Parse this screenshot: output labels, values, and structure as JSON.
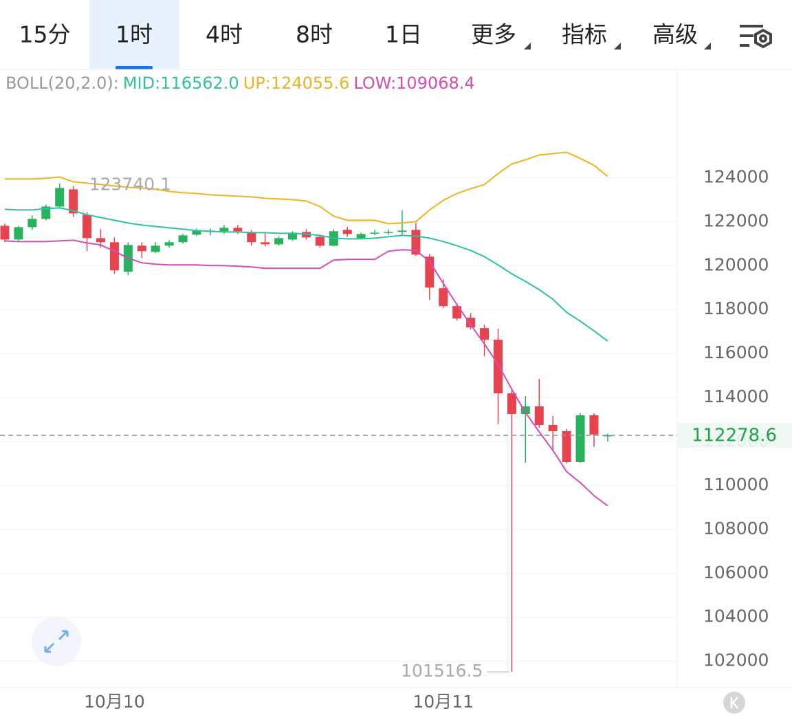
{
  "tabs": [
    "15分",
    "1时",
    "4时",
    "8时",
    "1日",
    "更多",
    "指标",
    "高级"
  ],
  "chart_data": {
    "type": "candlestick",
    "indicator": "BOLL(20,2.0):",
    "categories": [
      null,
      null,
      null,
      null,
      null,
      null,
      null,
      null,
      "10月10",
      null,
      null,
      null,
      null,
      null,
      null,
      null,
      null,
      null,
      null,
      null,
      null,
      null,
      null,
      null,
      null,
      null,
      null,
      null,
      null,
      null,
      null,
      null,
      "10月11",
      null,
      null,
      null,
      null,
      null,
      null,
      null,
      null,
      null,
      null,
      null,
      null
    ],
    "open": [
      121812,
      121187,
      121750,
      122125,
      122687,
      123469,
      122312,
      121250,
      121062,
      119719,
      120906,
      120625,
      120906,
      121062,
      121406,
      121531,
      121562,
      121719,
      121531,
      121062,
      120969,
      121187,
      121531,
      121312,
      120906,
      121625,
      121250,
      121469,
      121500,
      121531,
      121625,
      120406,
      118969,
      118156,
      117625,
      117156,
      116625,
      114187,
      113250,
      113594,
      112750,
      112469,
      111062,
      113187,
      112250
    ],
    "high": [
      121906,
      121812,
      122281,
      122781,
      123740.1,
      123625,
      122437,
      121656,
      121281,
      121062,
      121062,
      121062,
      121156,
      121437,
      121687,
      121687,
      121844,
      121844,
      121625,
      121469,
      121344,
      121562,
      121656,
      121406,
      121656,
      121750,
      121500,
      121625,
      121656,
      122500,
      121937,
      120531,
      119375,
      118281,
      117844,
      117312,
      117125,
      114375,
      114062,
      114844,
      113156,
      112562,
      113281,
      113281,
      112350
    ],
    "low": [
      121062,
      121125,
      121625,
      122062,
      122625,
      122219,
      120656,
      120812,
      119625,
      119562,
      120344,
      120562,
      120812,
      121000,
      121344,
      121375,
      121437,
      121437,
      120906,
      120875,
      120906,
      121125,
      121187,
      120812,
      120875,
      121312,
      121187,
      121375,
      121406,
      121344,
      120437,
      118437,
      118062,
      117500,
      117094,
      115875,
      112781,
      101516.5,
      111031,
      112625,
      111594,
      111000,
      111031,
      111750,
      112000
    ],
    "close": [
      121187,
      121750,
      122125,
      122687,
      123531,
      122375,
      121250,
      121062,
      119781,
      120937,
      120656,
      120906,
      121062,
      121375,
      121594,
      121594,
      121719,
      121562,
      121062,
      120969,
      121250,
      121500,
      121281,
      120906,
      121562,
      121437,
      121437,
      121500,
      121531,
      121594,
      120500,
      119000,
      118156,
      117594,
      117187,
      116625,
      114187,
      113250,
      113594,
      112750,
      112469,
      111062,
      113187,
      112312,
      112278.6
    ],
    "up_color": "#27b35d",
    "down_color": "#e5444f",
    "series": [
      {
        "name": "MID",
        "legend_label": "MID:116562.0",
        "color": "#2dc3a0",
        "values": [
          122563,
          122531,
          122531,
          122594,
          122625,
          122500,
          122313,
          122188,
          122063,
          121938,
          121844,
          121781,
          121719,
          121656,
          121594,
          121563,
          121531,
          121531,
          121500,
          121500,
          121469,
          121469,
          121438,
          121375,
          121250,
          121219,
          121219,
          121250,
          121313,
          121375,
          121344,
          121250,
          121094,
          120906,
          120688,
          120406,
          120031,
          119625,
          119281,
          118906,
          118469,
          117875,
          117469,
          117031,
          116562
        ]
      },
      {
        "name": "UP",
        "legend_label": "UP:124055.6",
        "color": "#efb320",
        "values": [
          123938,
          123938,
          123938,
          123969,
          124031,
          123813,
          123750,
          123688,
          123625,
          123563,
          123531,
          123469,
          123375,
          123313,
          123281,
          123219,
          123188,
          123156,
          123125,
          123063,
          123031,
          123000,
          122938,
          122688,
          122250,
          122063,
          122063,
          122063,
          121906,
          121938,
          122000,
          122531,
          122969,
          123281,
          123500,
          123688,
          124188,
          124625,
          124813,
          125031,
          125094,
          125156,
          124875,
          124563,
          124055.6
        ]
      },
      {
        "name": "LOW",
        "legend_label": "LOW:109068.4",
        "color": "#d94bb6",
        "values": [
          121125,
          121094,
          121094,
          121094,
          121125,
          121156,
          121031,
          120938,
          120656,
          120344,
          120125,
          120063,
          120031,
          120031,
          120031,
          120000,
          120000,
          119969,
          119938,
          119875,
          119875,
          119875,
          119875,
          119875,
          120250,
          120281,
          120281,
          120281,
          120656,
          120719,
          120688,
          120188,
          119188,
          118219,
          117313,
          116438,
          115500,
          114375,
          113313,
          112438,
          111594,
          110625,
          110125,
          109531,
          109068.4
        ]
      }
    ],
    "ylim": [
      100800,
      128800
    ],
    "yticks": [
      102000,
      104000,
      106000,
      108000,
      110000,
      112000,
      114000,
      116000,
      118000,
      120000,
      122000,
      124000
    ],
    "grid": true
  }
}
